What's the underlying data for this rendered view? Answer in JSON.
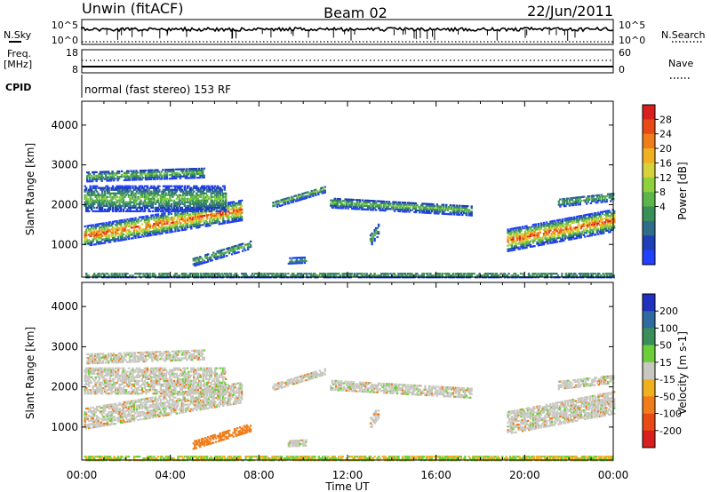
{
  "header": {
    "site": "Unwin (fitACF)",
    "beam": "Beam 02",
    "date": "22/Jun/2011"
  },
  "side_labels": {
    "nsky": "N.Sky",
    "nsearch": "N.Search",
    "freq": "Freq.",
    "mhz": "[MHz]",
    "nave": "Nave",
    "cpid": "CPID",
    "nsky_ticks": [
      "10^5",
      "10^0"
    ],
    "nsearch_ticks": [
      "10^5",
      "10^0"
    ],
    "freq_ticks": [
      "18",
      "8"
    ],
    "nave_ticks": [
      "60",
      "0"
    ]
  },
  "cpid_text": "normal (fast stereo) 153 RF",
  "chart_data": [
    {
      "type": "heatmap",
      "title": "",
      "xlabel": "",
      "ylabel": "Slant Range [km]",
      "xlim": [
        0,
        24
      ],
      "ylim": [
        180,
        4600
      ],
      "yticks": [
        "1000",
        "2000",
        "3000",
        "4000"
      ],
      "colorbar": {
        "label": "Power [dB]",
        "ticks": [
          "4",
          "8",
          "12",
          "16",
          "20",
          "24",
          "28"
        ],
        "colors": [
          "#2140ff",
          "#1e3fb8",
          "#2f6d8a",
          "#3a8f58",
          "#5cb64a",
          "#8fd13c",
          "#d8d23a",
          "#f0b020",
          "#f07d1a",
          "#e84a16",
          "#d81e1e"
        ]
      }
    },
    {
      "type": "heatmap",
      "title": "",
      "xlabel": "Time UT",
      "ylabel": "Slant Range [km]",
      "xlim": [
        0,
        24
      ],
      "ylim": [
        180,
        4600
      ],
      "yticks": [
        "1000",
        "2000",
        "3000",
        "4000"
      ],
      "xticks": [
        "00:00",
        "04:00",
        "08:00",
        "12:00",
        "16:00",
        "20:00",
        "00:00"
      ],
      "colorbar": {
        "label": "Velocity [m s-1]",
        "ticks": [
          "200",
          "100",
          "50",
          "15",
          "-15",
          "-50",
          "-100",
          "-200"
        ],
        "colors": [
          "#2030c0",
          "#2f6aa0",
          "#3a8f58",
          "#6ccf3a",
          "#c8c8c0",
          "#f0b020",
          "#f07d1a",
          "#e84a16",
          "#d81e1e"
        ]
      }
    }
  ]
}
